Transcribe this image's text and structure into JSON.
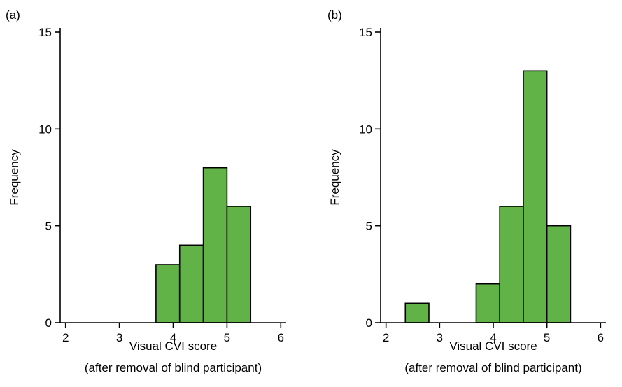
{
  "chart_data": [
    {
      "type": "bar",
      "panel_label": "(a)",
      "xlabel": "Visual CVI score",
      "xlabel_line2": "(after removal of blind participant)",
      "ylabel": "Frequency",
      "xlim": [
        1.9,
        6.1
      ],
      "ylim": [
        0,
        15
      ],
      "xticks": [
        2,
        3,
        4,
        5,
        6
      ],
      "yticks": [
        0,
        5,
        10,
        15
      ],
      "bin_width": 0.44,
      "bins": [
        {
          "center": 3.9,
          "value": 3
        },
        {
          "center": 4.34,
          "value": 4
        },
        {
          "center": 4.78,
          "value": 8
        },
        {
          "center": 5.22,
          "value": 6
        }
      ],
      "bar_color": "#62b347",
      "grid": false
    },
    {
      "type": "bar",
      "panel_label": "(b)",
      "xlabel": "Visual CVI score",
      "xlabel_line2": "(after removal of blind participant)",
      "ylabel": "Frequency",
      "xlim": [
        1.9,
        6.1
      ],
      "ylim": [
        0,
        15
      ],
      "xticks": [
        2,
        3,
        4,
        5,
        6
      ],
      "yticks": [
        0,
        5,
        10,
        15
      ],
      "bin_width": 0.44,
      "bins": [
        {
          "center": 2.58,
          "value": 1
        },
        {
          "center": 3.9,
          "value": 2
        },
        {
          "center": 4.34,
          "value": 6
        },
        {
          "center": 4.78,
          "value": 13
        },
        {
          "center": 5.22,
          "value": 5
        }
      ],
      "bar_color": "#62b347",
      "grid": false
    }
  ]
}
